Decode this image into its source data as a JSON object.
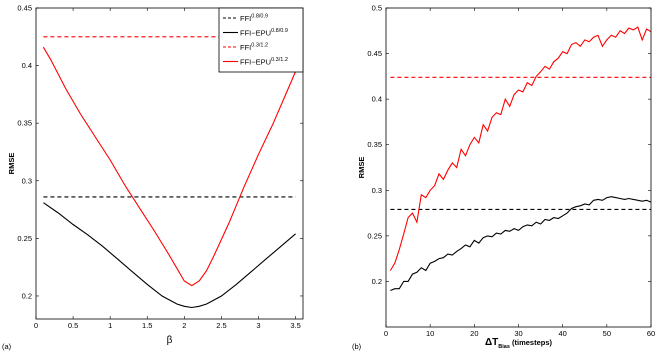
{
  "chart_data": [
    {
      "type": "line",
      "panel_label": "(a)",
      "xlabel": "β",
      "ylabel": "RMSE",
      "xlim": [
        0,
        3.6
      ],
      "ylim": [
        0.18,
        0.45
      ],
      "xticks": [
        0,
        0.5,
        1,
        1.5,
        2,
        2.5,
        3,
        3.5
      ],
      "xtick_labels": [
        "0",
        "0.5",
        "1",
        "1.5",
        "2",
        "2.5",
        "3",
        "3.5"
      ],
      "yticks": [
        0.2,
        0.25,
        0.3,
        0.35,
        0.4,
        0.45
      ],
      "ytick_labels": [
        "0.2",
        "0.25",
        "0.3",
        "0.35",
        "0.4",
        "0.45"
      ],
      "legend_placement": "top-right",
      "series": [
        {
          "name": "FFI",
          "sup": "0.8/0.9",
          "color": "#000000",
          "style": "dashed",
          "x": [
            0.1,
            3.5
          ],
          "y": [
            0.286,
            0.286
          ]
        },
        {
          "name": "FFI−EPU",
          "sup": "0.8/0.9",
          "color": "#000000",
          "style": "solid",
          "x": [
            0.1,
            0.3,
            0.5,
            0.7,
            0.9,
            1.1,
            1.3,
            1.5,
            1.7,
            1.9,
            2.0,
            2.1,
            2.2,
            2.3,
            2.5,
            2.7,
            2.9,
            3.1,
            3.3,
            3.5
          ],
          "y": [
            0.281,
            0.272,
            0.262,
            0.253,
            0.243,
            0.232,
            0.221,
            0.21,
            0.2,
            0.193,
            0.191,
            0.19,
            0.191,
            0.193,
            0.2,
            0.21,
            0.221,
            0.232,
            0.243,
            0.254
          ]
        },
        {
          "name": "FFI",
          "sup": "0.3/1.2",
          "color": "#ff0000",
          "style": "dashed",
          "x": [
            0.1,
            3.5
          ],
          "y": [
            0.425,
            0.425
          ]
        },
        {
          "name": "FFI−EPU",
          "sup": "0.3/1.2",
          "color": "#ff0000",
          "style": "solid",
          "x": [
            0.1,
            0.2,
            0.4,
            0.6,
            0.8,
            1.0,
            1.2,
            1.4,
            1.6,
            1.8,
            1.9,
            2.0,
            2.1,
            2.2,
            2.3,
            2.4,
            2.6,
            2.8,
            3.0,
            3.2,
            3.4,
            3.5
          ],
          "y": [
            0.416,
            0.405,
            0.38,
            0.358,
            0.338,
            0.318,
            0.296,
            0.276,
            0.256,
            0.235,
            0.224,
            0.213,
            0.209,
            0.213,
            0.222,
            0.235,
            0.263,
            0.294,
            0.323,
            0.35,
            0.38,
            0.395
          ]
        }
      ]
    },
    {
      "type": "line",
      "panel_label": "(b)",
      "xlabel": "ΔT",
      "xlabel_sub": "Bias",
      "xlabel_suffix": " (timesteps)",
      "ylabel": "RMSE",
      "xlim": [
        0,
        60
      ],
      "ylim": [
        0.15,
        0.5
      ],
      "xticks": [
        0,
        10,
        20,
        30,
        40,
        50,
        60
      ],
      "xtick_labels": [
        "0",
        "10",
        "20",
        "30",
        "40",
        "50",
        "60"
      ],
      "yticks": [
        0.2,
        0.25,
        0.3,
        0.35,
        0.4,
        0.45,
        0.5
      ],
      "ytick_labels": [
        "0.2",
        "0.25",
        "0.3",
        "0.35",
        "0.4",
        "0.45",
        "0.5"
      ],
      "series": [
        {
          "color": "#000000",
          "style": "dashed",
          "x": [
            1,
            60
          ],
          "y": [
            0.279,
            0.279
          ]
        },
        {
          "color": "#000000",
          "style": "solid",
          "x": [
            1,
            2,
            3,
            4,
            5,
            6,
            7,
            8,
            9,
            10,
            11,
            12,
            13,
            14,
            15,
            16,
            17,
            18,
            19,
            20,
            21,
            22,
            23,
            24,
            25,
            26,
            27,
            28,
            29,
            30,
            31,
            32,
            33,
            34,
            35,
            36,
            37,
            38,
            39,
            40,
            41,
            42,
            43,
            44,
            45,
            46,
            47,
            48,
            49,
            50,
            51,
            52,
            53,
            54,
            55,
            56,
            57,
            58,
            59,
            60
          ],
          "y": [
            0.19,
            0.192,
            0.192,
            0.2,
            0.2,
            0.208,
            0.21,
            0.215,
            0.212,
            0.22,
            0.222,
            0.225,
            0.226,
            0.23,
            0.229,
            0.233,
            0.236,
            0.24,
            0.238,
            0.245,
            0.242,
            0.248,
            0.25,
            0.249,
            0.253,
            0.252,
            0.256,
            0.255,
            0.258,
            0.256,
            0.26,
            0.262,
            0.261,
            0.265,
            0.263,
            0.268,
            0.267,
            0.27,
            0.269,
            0.272,
            0.275,
            0.28,
            0.282,
            0.283,
            0.285,
            0.284,
            0.289,
            0.29,
            0.289,
            0.292,
            0.293,
            0.292,
            0.291,
            0.29,
            0.291,
            0.29,
            0.289,
            0.288,
            0.289,
            0.287
          ]
        },
        {
          "color": "#ff0000",
          "style": "dashed",
          "x": [
            1,
            60
          ],
          "y": [
            0.424,
            0.424
          ]
        },
        {
          "color": "#ff0000",
          "style": "solid",
          "x": [
            1,
            2,
            3,
            4,
            5,
            6,
            7,
            8,
            9,
            10,
            11,
            12,
            13,
            14,
            15,
            16,
            17,
            18,
            19,
            20,
            21,
            22,
            23,
            24,
            25,
            26,
            27,
            28,
            29,
            30,
            31,
            32,
            33,
            34,
            35,
            36,
            37,
            38,
            39,
            40,
            41,
            42,
            43,
            44,
            45,
            46,
            47,
            48,
            49,
            50,
            51,
            52,
            53,
            54,
            55,
            56,
            57,
            58,
            59,
            60
          ],
          "y": [
            0.212,
            0.22,
            0.235,
            0.252,
            0.27,
            0.275,
            0.265,
            0.295,
            0.292,
            0.3,
            0.305,
            0.318,
            0.312,
            0.322,
            0.33,
            0.325,
            0.345,
            0.338,
            0.35,
            0.358,
            0.352,
            0.372,
            0.365,
            0.38,
            0.385,
            0.383,
            0.4,
            0.392,
            0.405,
            0.41,
            0.408,
            0.418,
            0.415,
            0.425,
            0.43,
            0.436,
            0.433,
            0.441,
            0.445,
            0.452,
            0.45,
            0.46,
            0.462,
            0.458,
            0.465,
            0.463,
            0.468,
            0.47,
            0.458,
            0.465,
            0.47,
            0.468,
            0.475,
            0.472,
            0.478,
            0.476,
            0.479,
            0.465,
            0.477,
            0.474
          ]
        }
      ]
    }
  ]
}
